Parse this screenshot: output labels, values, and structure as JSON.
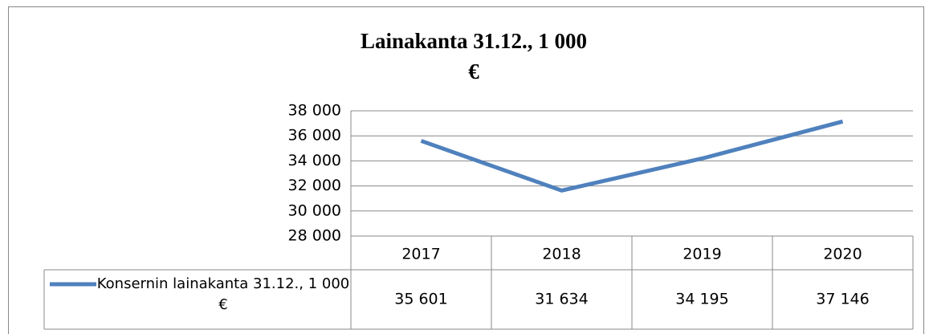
{
  "chart_data": {
    "type": "line",
    "title": "Lainakanta 31.12., 1 000 €",
    "categories": [
      "2017",
      "2018",
      "2019",
      "2020"
    ],
    "series": [
      {
        "name": "Konsernin lainakanta 31.12., 1 000 €",
        "color": "#4f81bd",
        "values": [
          35601,
          31634,
          34195,
          37146
        ],
        "value_labels": [
          "35 601",
          "31 634",
          "34 195",
          "37 146"
        ]
      }
    ],
    "ylim": [
      28000,
      38000
    ],
    "yticks": [
      {
        "value": 28000,
        "label": "28 000"
      },
      {
        "value": 30000,
        "label": "30 000"
      },
      {
        "value": 32000,
        "label": "32 000"
      },
      {
        "value": 34000,
        "label": "34 000"
      },
      {
        "value": 36000,
        "label": "36 000"
      },
      {
        "value": 38000,
        "label": "38 000"
      }
    ],
    "grid": true,
    "data_table": true
  }
}
